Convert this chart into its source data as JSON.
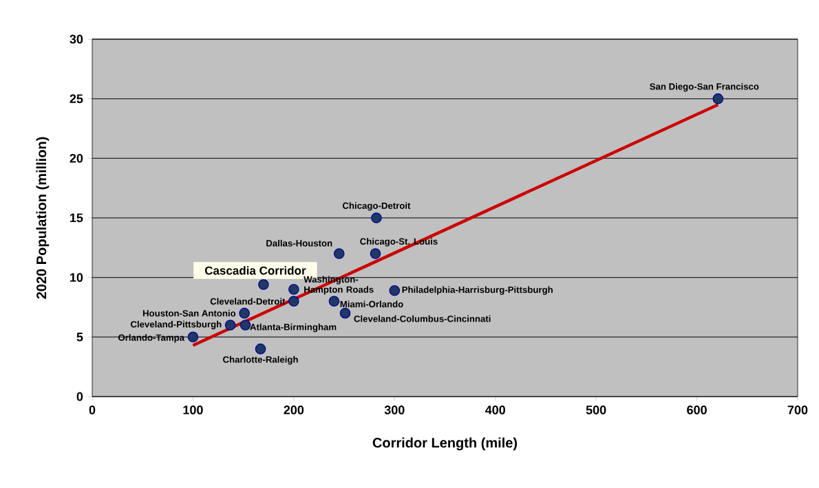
{
  "chart_data": {
    "type": "scatter",
    "xlabel": "Corridor Length (mile)",
    "ylabel": "2020 Population (million)",
    "xlim": [
      0,
      700
    ],
    "ylim": [
      0,
      30
    ],
    "xticks": [
      0,
      100,
      200,
      300,
      400,
      500,
      600,
      700
    ],
    "yticks": [
      0,
      5,
      10,
      15,
      20,
      25,
      30
    ],
    "grid": "y",
    "series": [
      {
        "marker": "circle",
        "color": "#1f3864",
        "x": [
          621,
          282,
          245,
          281,
          170,
          200,
          200,
          240,
          151,
          251,
          300,
          137,
          152,
          100,
          167
        ],
        "values": [
          25,
          15,
          12,
          12,
          9.4,
          9,
          8,
          8,
          7,
          7,
          8.9,
          6,
          6,
          5,
          4
        ]
      },
      {
        "type": "line",
        "color": "#cc0000",
        "line_style": "solid",
        "x": [
          100,
          621
        ],
        "values": [
          4.3,
          24.5
        ]
      }
    ],
    "annotations": [
      {
        "text": "San Diego-San Francisco",
        "x": 621,
        "y": 25
      },
      {
        "text": "Chicago-Detroit",
        "x": 282,
        "y": 15
      },
      {
        "text": "Dallas-Houston",
        "x": 245,
        "y": 12
      },
      {
        "text": "Chicago-St. Louis",
        "x": 281,
        "y": 12
      },
      {
        "text": "Cascadia Corridor",
        "x": 170,
        "y": 9.4
      },
      {
        "text": "Washington-Hampton Roads",
        "x": 200,
        "y": 9
      },
      {
        "text": "Cleveland-Detroit",
        "x": 200,
        "y": 8
      },
      {
        "text": "Miami-Orlando",
        "x": 240,
        "y": 8
      },
      {
        "text": "Houston-San Antonio",
        "x": 151,
        "y": 7
      },
      {
        "text": "Cleveland-Columbus-Cincinnati",
        "x": 251,
        "y": 7
      },
      {
        "text": "Philadelphia-Harrisburg-Pittsburgh",
        "x": 300,
        "y": 8.9
      },
      {
        "text": "Cleveland-Pittsburgh",
        "x": 137,
        "y": 6
      },
      {
        "text": "Atlanta-Birmingham",
        "x": 152,
        "y": 6
      },
      {
        "text": "Orlando-Tampa",
        "x": 100,
        "y": 5
      },
      {
        "text": "Charlotte-Raleigh",
        "x": 167,
        "y": 4
      }
    ]
  }
}
